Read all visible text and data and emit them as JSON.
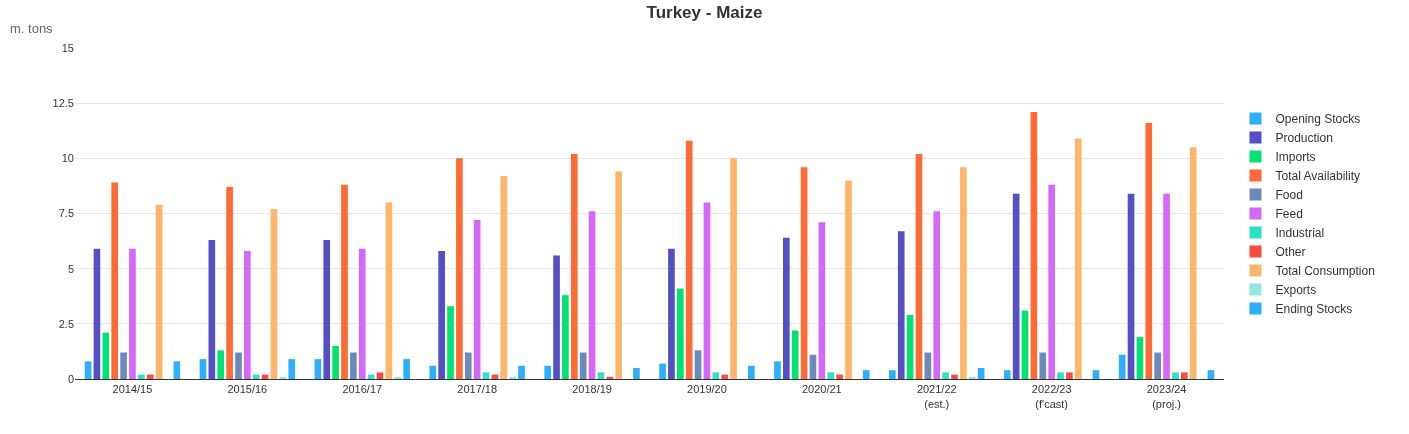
{
  "chart_data": {
    "type": "bar",
    "title": "Turkey - Maize",
    "ylabel": "m. tons",
    "categories": [
      "2014/15",
      "2015/16",
      "2016/17",
      "2017/18",
      "2018/19",
      "2019/20",
      "2020/21",
      "2021/22\n(est.)",
      "2022/23\n(f'cast)",
      "2023/24\n(proj.)"
    ],
    "series": [
      {
        "name": "Opening Stocks",
        "color": "#2caffe",
        "values": [
          0.8,
          0.9,
          0.9,
          0.6,
          0.6,
          0.7,
          0.8,
          0.4,
          0.4,
          1.1
        ]
      },
      {
        "name": "Production",
        "color": "#544fc5",
        "values": [
          5.9,
          6.3,
          6.3,
          5.8,
          5.6,
          5.9,
          6.4,
          6.7,
          8.4,
          8.4
        ]
      },
      {
        "name": "Imports",
        "color": "#00e272",
        "values": [
          2.1,
          1.3,
          1.5,
          3.3,
          3.8,
          4.1,
          2.2,
          2.9,
          3.1,
          1.9
        ]
      },
      {
        "name": "Total Availability",
        "color": "#fe6a35",
        "values": [
          8.9,
          8.7,
          8.8,
          10.0,
          10.2,
          10.8,
          9.6,
          10.2,
          12.1,
          11.6
        ]
      },
      {
        "name": "Food",
        "color": "#6b8abc",
        "values": [
          1.2,
          1.2,
          1.2,
          1.2,
          1.2,
          1.3,
          1.1,
          1.2,
          1.2,
          1.2
        ]
      },
      {
        "name": "Feed",
        "color": "#d568fb",
        "values": [
          5.9,
          5.8,
          5.9,
          7.2,
          7.6,
          8.0,
          7.1,
          7.6,
          8.8,
          8.4
        ]
      },
      {
        "name": "Industrial",
        "color": "#2ee0ca",
        "values": [
          0.2,
          0.2,
          0.2,
          0.3,
          0.3,
          0.3,
          0.3,
          0.3,
          0.3,
          0.3
        ]
      },
      {
        "name": "Other",
        "color": "#fa4b42",
        "values": [
          0.2,
          0.2,
          0.3,
          0.2,
          0.1,
          0.2,
          0.2,
          0.2,
          0.3,
          0.3
        ]
      },
      {
        "name": "Total Consumption",
        "color": "#feb56a",
        "values": [
          7.9,
          7.7,
          8.0,
          9.2,
          9.4,
          10.0,
          9.0,
          9.6,
          10.9,
          10.5
        ]
      },
      {
        "name": "Exports",
        "color": "#91e8e1",
        "values": [
          0,
          0.05,
          0.05,
          0.05,
          0,
          0,
          0,
          0.05,
          0,
          0
        ]
      },
      {
        "name": "Ending Stocks",
        "color": "#2caffe",
        "values": [
          0.8,
          0.9,
          0.9,
          0.6,
          0.5,
          0.6,
          0.4,
          0.5,
          0.4,
          0.4
        ]
      }
    ],
    "ylim": [
      0,
      15
    ],
    "yticks": [
      0,
      2.5,
      5,
      7.5,
      10,
      12.5,
      15
    ],
    "grid": "y",
    "legend": "right"
  }
}
